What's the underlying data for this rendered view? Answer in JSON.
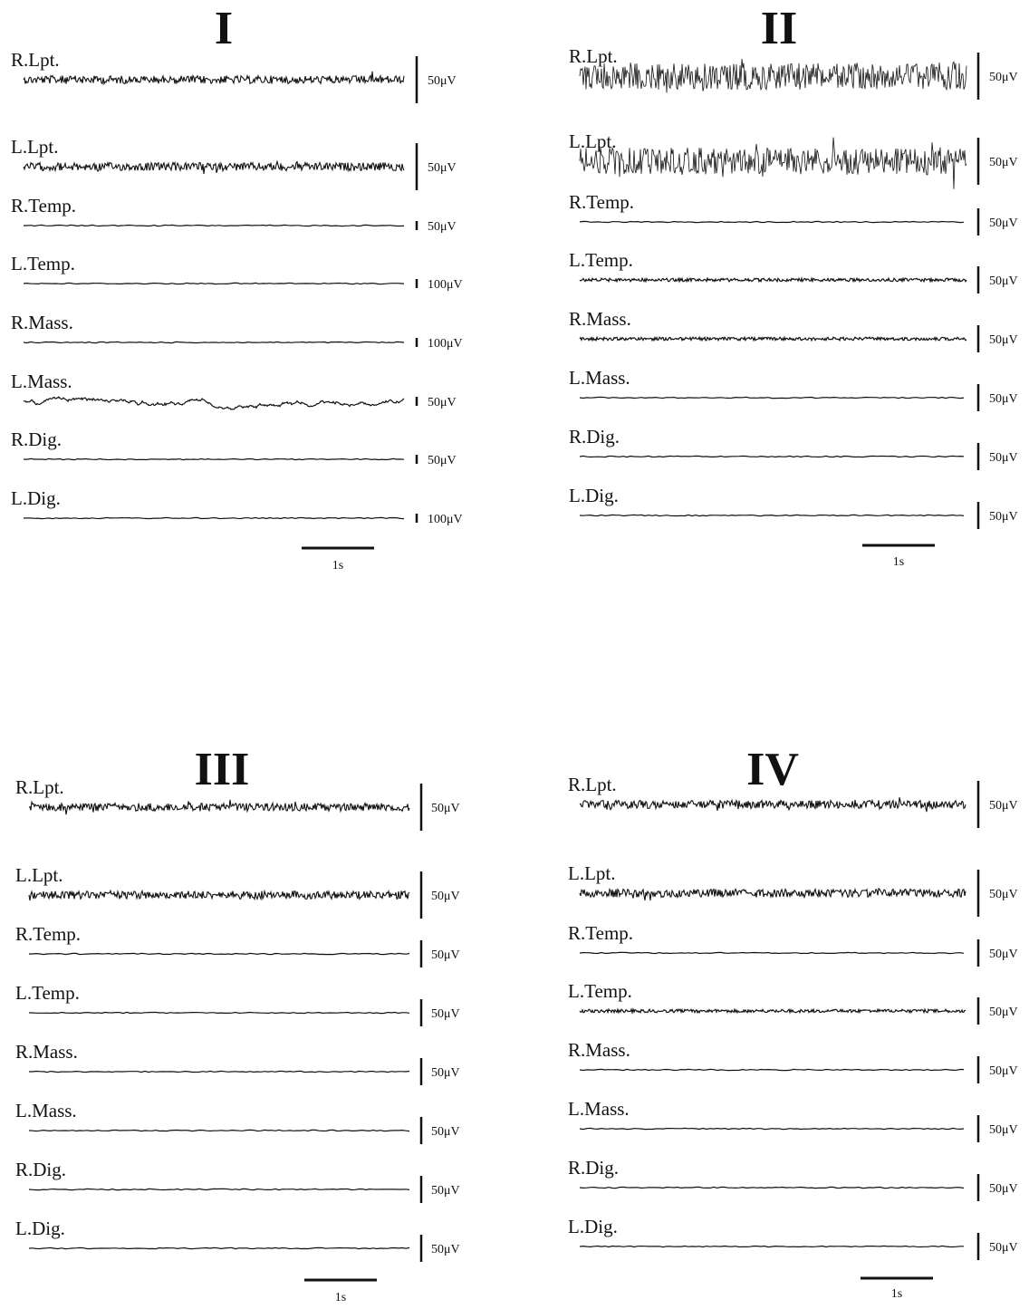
{
  "chart_data": [
    {
      "type": "line",
      "title": "I",
      "time_scale_label": "1s",
      "channels": [
        {
          "name": "R.Lpt.",
          "scale_label": "50μV",
          "activity": "moderate"
        },
        {
          "name": "L.Lpt.",
          "scale_label": "50μV",
          "activity": "moderate"
        },
        {
          "name": "R.Temp.",
          "scale_label": "50μV",
          "activity": "flat"
        },
        {
          "name": "L.Temp.",
          "scale_label": "100μV",
          "activity": "flat"
        },
        {
          "name": "R.Mass.",
          "scale_label": "100μV",
          "activity": "flat"
        },
        {
          "name": "L.Mass.",
          "scale_label": "50μV",
          "activity": "wavy"
        },
        {
          "name": "R.Dig.",
          "scale_label": "50μV",
          "activity": "flat"
        },
        {
          "name": "L.Dig.",
          "scale_label": "100μV",
          "activity": "flat"
        }
      ]
    },
    {
      "type": "line",
      "title": "II",
      "time_scale_label": "1s",
      "channels": [
        {
          "name": "R.Lpt.",
          "scale_label": "50μV",
          "activity": "high"
        },
        {
          "name": "L.Lpt.",
          "scale_label": "50μV",
          "activity": "high"
        },
        {
          "name": "R.Temp.",
          "scale_label": "50μV",
          "activity": "flat"
        },
        {
          "name": "L.Temp.",
          "scale_label": "50μV",
          "activity": "low"
        },
        {
          "name": "R.Mass.",
          "scale_label": "50μV",
          "activity": "low"
        },
        {
          "name": "L.Mass.",
          "scale_label": "50μV",
          "activity": "flat"
        },
        {
          "name": "R.Dig.",
          "scale_label": "50μV",
          "activity": "flat"
        },
        {
          "name": "L.Dig.",
          "scale_label": "50μV",
          "activity": "flat"
        }
      ]
    },
    {
      "type": "line",
      "title": "III",
      "time_scale_label": "1s",
      "channels": [
        {
          "name": "R.Lpt.",
          "scale_label": "50μV",
          "activity": "moderate"
        },
        {
          "name": "L.Lpt.",
          "scale_label": "50μV",
          "activity": "moderate"
        },
        {
          "name": "R.Temp.",
          "scale_label": "50μV",
          "activity": "flat"
        },
        {
          "name": "L.Temp.",
          "scale_label": "50μV",
          "activity": "flat"
        },
        {
          "name": "R.Mass.",
          "scale_label": "50μV",
          "activity": "flat"
        },
        {
          "name": "L.Mass.",
          "scale_label": "50μV",
          "activity": "flat"
        },
        {
          "name": "R.Dig.",
          "scale_label": "50μV",
          "activity": "flat"
        },
        {
          "name": "L.Dig.",
          "scale_label": "50μV",
          "activity": "flat"
        }
      ]
    },
    {
      "type": "line",
      "title": "IV",
      "time_scale_label": "1s",
      "channels": [
        {
          "name": "R.Lpt.",
          "scale_label": "50μV",
          "activity": "moderate"
        },
        {
          "name": "L.Lpt.",
          "scale_label": "50μV",
          "activity": "moderate"
        },
        {
          "name": "R.Temp.",
          "scale_label": "50μV",
          "activity": "flat"
        },
        {
          "name": "L.Temp.",
          "scale_label": "50μV",
          "activity": "low"
        },
        {
          "name": "R.Mass.",
          "scale_label": "50μV",
          "activity": "flat"
        },
        {
          "name": "L.Mass.",
          "scale_label": "50μV",
          "activity": "flat"
        },
        {
          "name": "R.Dig.",
          "scale_label": "50μV",
          "activity": "flat"
        },
        {
          "name": "L.Dig.",
          "scale_label": "50μV",
          "activity": "flat"
        }
      ]
    }
  ]
}
